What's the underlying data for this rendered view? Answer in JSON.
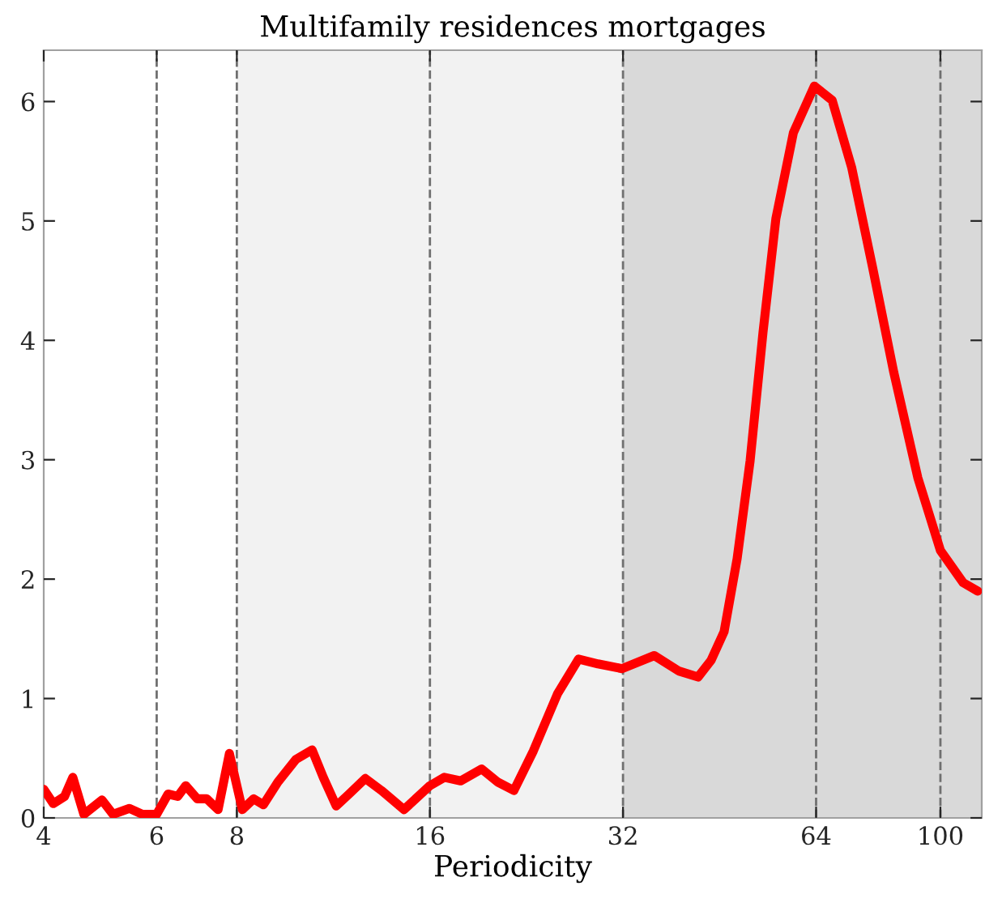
{
  "chart_data": {
    "type": "line",
    "title": "Multifamily residences mortgages",
    "xlabel": "Periodicity",
    "log": "x",
    "xlim": [
      4,
      116
    ],
    "xticks": [
      4,
      6,
      8,
      16,
      32,
      64,
      100
    ],
    "ylim": [
      0,
      6.43
    ],
    "yticks": [
      0,
      1,
      2,
      3,
      4,
      5,
      6
    ],
    "grid": false,
    "legend": false,
    "line_style": "solid",
    "marker": "none",
    "bands": [
      {
        "axis": "x",
        "from": 8,
        "to": 32,
        "color": "#f2f2f2"
      },
      {
        "axis": "x",
        "from": 32,
        "to": 116,
        "color": "#d9d9d9"
      }
    ],
    "ref_lines": [
      {
        "axis": "x",
        "value": 6,
        "color": "#707070",
        "line_style": "dashed"
      },
      {
        "axis": "x",
        "value": 8,
        "color": "#707070",
        "line_style": "dashed"
      },
      {
        "axis": "x",
        "value": 16,
        "color": "#707070",
        "line_style": "dashed"
      },
      {
        "axis": "x",
        "value": 32,
        "color": "#707070",
        "line_style": "dashed"
      },
      {
        "axis": "x",
        "value": 64,
        "color": "#707070",
        "line_style": "dashed"
      },
      {
        "axis": "x",
        "value": 100,
        "color": "#707070",
        "line_style": "dashed"
      }
    ],
    "series": [
      {
        "color": "#ff0000",
        "x": [
          4.0,
          4.14,
          4.31,
          4.44,
          4.62,
          4.93,
          5.13,
          5.44,
          5.7,
          6.0,
          6.25,
          6.47,
          6.66,
          6.94,
          7.18,
          7.48,
          7.79,
          8.16,
          8.5,
          8.8,
          9.27,
          9.89,
          10.48,
          10.91,
          11.43,
          11.97,
          12.69,
          13.44,
          14.58,
          16.0,
          16.85,
          17.86,
          19.26,
          20.41,
          21.63,
          23.19,
          25.3,
          27.28,
          29.25,
          31.9,
          35.8,
          39.1,
          41.9,
          43.9,
          46.0,
          48.2,
          50.5,
          52.9,
          55.4,
          59.0,
          63.6,
          67.8,
          72.7,
          78.4,
          84.6,
          92.2,
          100.0,
          108.5,
          114.3
        ],
        "values": [
          0.24,
          0.12,
          0.18,
          0.34,
          0.03,
          0.15,
          0.03,
          0.08,
          0.03,
          0.03,
          0.2,
          0.18,
          0.27,
          0.16,
          0.16,
          0.07,
          0.54,
          0.07,
          0.16,
          0.11,
          0.3,
          0.49,
          0.57,
          0.34,
          0.1,
          0.2,
          0.33,
          0.23,
          0.07,
          0.27,
          0.34,
          0.31,
          0.41,
          0.3,
          0.23,
          0.56,
          1.04,
          1.33,
          1.29,
          1.25,
          1.36,
          1.23,
          1.18,
          1.32,
          1.56,
          2.17,
          2.99,
          4.07,
          5.02,
          5.74,
          6.13,
          6.01,
          5.45,
          4.61,
          3.73,
          2.85,
          2.24,
          1.97,
          1.9
        ]
      }
    ]
  }
}
